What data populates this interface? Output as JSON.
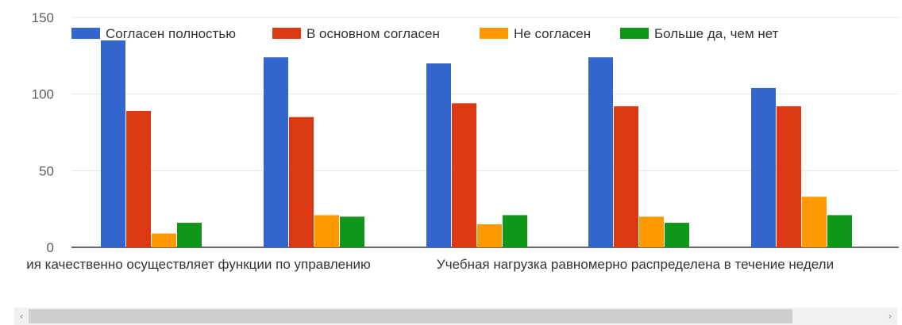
{
  "chart_data": {
    "type": "bar",
    "ylim": [
      0,
      150
    ],
    "yticks": [
      "0",
      "50",
      "100",
      "150"
    ],
    "xlabels": [
      "ия качественно осуществляет функции по управлению",
      "Учебная нагрузка равномерно распределена в течение недели"
    ],
    "categories": [
      "",
      "",
      "",
      "",
      ""
    ],
    "series": [
      {
        "name": "Согласен полностью",
        "color": "#3366cc",
        "values": [
          135,
          124,
          120,
          124,
          104
        ]
      },
      {
        "name": "В основном согласен",
        "color": "#dc3912",
        "values": [
          89,
          85,
          94,
          92,
          92
        ]
      },
      {
        "name": "Не согласен",
        "color": "#ff9900",
        "values": [
          9,
          21,
          15,
          20,
          33
        ]
      },
      {
        "name": "Больше да, чем нет",
        "color": "#109618",
        "values": [
          16,
          20,
          21,
          16,
          21
        ]
      }
    ],
    "grid": true,
    "legend": "top"
  },
  "scrollbar": {
    "left_arrow": "‹",
    "right_arrow": "›"
  }
}
